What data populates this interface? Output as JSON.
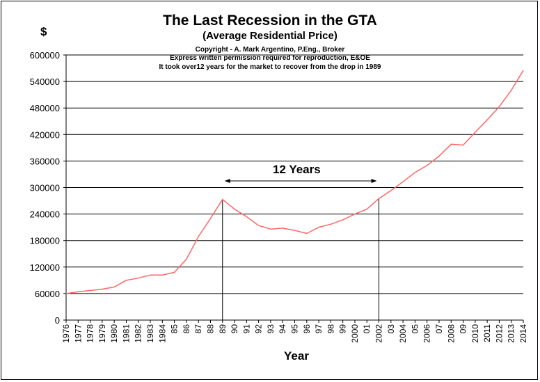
{
  "chart_data": {
    "type": "line",
    "title": "The Last Recession in the GTA",
    "subtitle": "(Average Residential Price)",
    "notes": [
      "Copyright - A. Mark Argentino, P.Eng., Broker",
      "Express written permission required for reproduction, E&OE",
      "It took over12 years for the market to recover from the drop in 1989"
    ],
    "ylabel": "$",
    "xlabel": "Year",
    "ylim": [
      0,
      600000
    ],
    "yticks": [
      "0",
      "60000",
      "120000",
      "180000",
      "240000",
      "300000",
      "360000",
      "420000",
      "480000",
      "540000",
      "600000"
    ],
    "categories": [
      "1976",
      "1977",
      "1978",
      "1979",
      "1980",
      "1981",
      "1982",
      "1983",
      "1984",
      "85",
      "86",
      "87",
      "88",
      "89",
      "90",
      "91",
      "92",
      "93",
      "94",
      "95",
      "96",
      "97",
      "98",
      "99",
      "2000",
      "01",
      "2002",
      "03",
      "2004",
      "05",
      "2006",
      "07",
      "2008",
      "09",
      "2010",
      "2011",
      "2012",
      "2013",
      "2014"
    ],
    "values": [
      60000,
      64000,
      67000,
      70000,
      75000,
      90000,
      95000,
      102000,
      102000,
      108000,
      138000,
      189000,
      230000,
      273000,
      251000,
      234000,
      214000,
      206000,
      208000,
      203000,
      196000,
      210000,
      217000,
      227000,
      240000,
      251000,
      275000,
      293000,
      313000,
      334000,
      350000,
      371000,
      398000,
      396000,
      425000,
      453000,
      483000,
      520000,
      565000
    ],
    "series": [
      {
        "color": "#ff6666"
      }
    ],
    "annotation": {
      "text": "12 Years",
      "from_year": "89",
      "to_year": "2002"
    },
    "grid": true
  }
}
